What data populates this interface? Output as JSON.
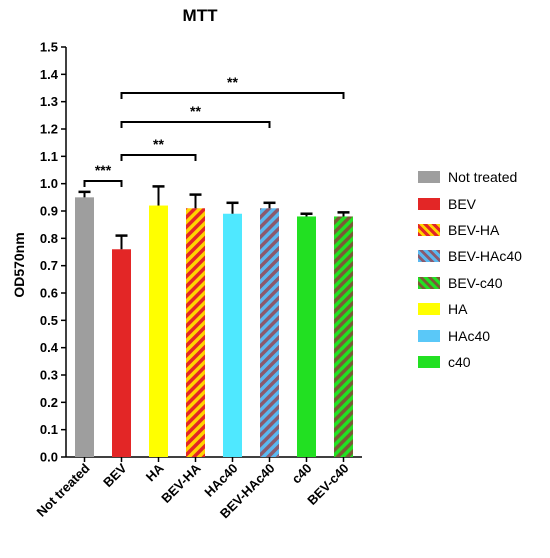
{
  "chart_data": {
    "type": "bar",
    "title": "MTT",
    "xlabel": "",
    "ylabel": "OD570nm",
    "ylim": [
      0,
      1.5
    ],
    "yticks": [
      "0.0",
      "0.1",
      "0.2",
      "0.3",
      "0.4",
      "0.5",
      "0.6",
      "0.7",
      "0.8",
      "0.9",
      "1.0",
      "1.1",
      "1.2",
      "1.3",
      "1.4",
      "1.5"
    ],
    "categories": [
      "Not treated",
      "BEV",
      "HA",
      "BEV-HA",
      "HAc40",
      "BEV-HAc40",
      "c40",
      "BEV-c40"
    ],
    "values": [
      0.95,
      0.76,
      0.92,
      0.91,
      0.89,
      0.91,
      0.88,
      0.88
    ],
    "errors": [
      0.02,
      0.05,
      0.07,
      0.05,
      0.04,
      0.02,
      0.01,
      0.015
    ],
    "colors": [
      "#9e9e9e",
      "#e32626",
      "#ffff00",
      "#e32626",
      "#4fe8ff",
      "#5ab8f0",
      "#22e022",
      "#22e022"
    ],
    "patterns": [
      null,
      null,
      null,
      "#ffd400",
      null,
      "#8a5a6e",
      null,
      "#7a5a35"
    ],
    "legend": {
      "placement": "right",
      "entries": [
        "Not treated",
        "BEV",
        "BEV-HA",
        "BEV-HAc40",
        "BEV-c40",
        "HA",
        "HAc40",
        "c40"
      ],
      "colors": [
        "#9e9e9e",
        "#e32626",
        "#e32626",
        "#5ab8f0",
        "#22e022",
        "#ffff00",
        "#5ac8f8",
        "#22e022"
      ],
      "patterns": [
        null,
        null,
        "#ffd400",
        "#8a5a6e",
        "#7a5a35",
        null,
        null,
        null
      ]
    },
    "significance": [
      {
        "from": "Not treated",
        "to": "BEV",
        "label": "***"
      },
      {
        "from": "BEV",
        "to": "BEV-HA",
        "label": "**"
      },
      {
        "from": "BEV",
        "to": "BEV-HAc40",
        "label": "**"
      },
      {
        "from": "BEV",
        "to": "BEV-c40",
        "label": "**"
      }
    ]
  }
}
